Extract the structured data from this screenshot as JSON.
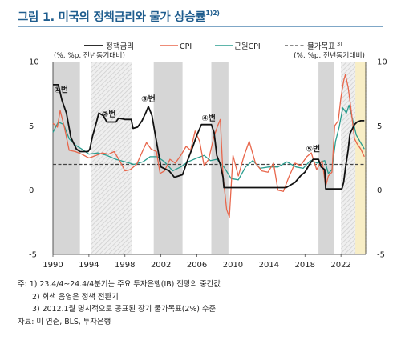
{
  "title": "그림 1. 미국의 정책금리와 물가 상승률",
  "title_sup": "1)2)",
  "chart_data": {
    "type": "line",
    "left_axis_label": "(%, %p, 전년동기대비)",
    "right_axis_label": "(%, %p, 전년동기대비)",
    "ylim": [
      -5,
      10
    ],
    "yticks_left": [
      "10",
      "5",
      "0",
      "-5"
    ],
    "yticks_right": [
      "10",
      "5",
      "0",
      "-5"
    ],
    "xlim": [
      1990,
      2024.75
    ],
    "xticks": [
      "1990",
      "1994",
      "1998",
      "2002",
      "2006",
      "2010",
      "2014",
      "2018",
      "2022"
    ],
    "legend": {
      "policy": "정책금리",
      "cpi": "CPI",
      "core": "근원CPI",
      "target": "물가목표",
      "target_sup": "3)"
    },
    "colors": {
      "policy": "#111111",
      "cpi": "#e8664b",
      "core": "#2a9d8f",
      "target": "#444444",
      "shade": "#d6d6d6",
      "forecast": "#f8eec6"
    },
    "recessions": [
      [
        1990.0,
        1993.0
      ],
      [
        2001.2,
        2004.4
      ],
      [
        2007.6,
        2009.5
      ],
      [
        2019.5,
        2021.2
      ]
    ],
    "hatched": [
      [
        1994.2,
        1998.8
      ],
      [
        2022.0,
        2023.6
      ]
    ],
    "forecast_period": [
      2023.25,
      2024.75
    ],
    "markers": [
      {
        "label": "①번",
        "x": 1990.9,
        "y": 7.6
      },
      {
        "label": "②번",
        "x": 1996.2,
        "y": 5.7
      },
      {
        "label": "③번",
        "x": 2000.6,
        "y": 6.9
      },
      {
        "label": "④번",
        "x": 2007.3,
        "y": 5.4
      },
      {
        "label": "⑤번",
        "x": 2018.9,
        "y": 3.0
      }
    ],
    "target_value": 2.0,
    "series": [
      {
        "key": "policy",
        "name": "정책금리",
        "x": [
          1990.0,
          1990.6,
          1991.0,
          1991.5,
          1992.0,
          1992.6,
          1993.0,
          1993.9,
          1994.1,
          1994.4,
          1994.8,
          1995.1,
          1995.6,
          1996.0,
          1996.5,
          1997.0,
          1997.3,
          1998.0,
          1998.7,
          1998.9,
          1999.4,
          1999.9,
          2000.3,
          2000.6,
          2001.0,
          2001.3,
          2001.7,
          2002.0,
          2002.9,
          2003.5,
          2004.4,
          2004.9,
          2005.5,
          2006.0,
          2006.5,
          2007.6,
          2007.9,
          2008.2,
          2008.6,
          2008.9,
          2009.0,
          2015.9,
          2016.9,
          2017.5,
          2018.0,
          2018.5,
          2018.9,
          2019.5,
          2019.8,
          2020.2,
          2020.3,
          2022.1,
          2022.3,
          2022.5,
          2022.8,
          2023.0,
          2023.5,
          2023.8,
          2024.2,
          2024.6
        ],
        "y": [
          8.2,
          8.2,
          7.0,
          6.0,
          4.1,
          3.2,
          3.0,
          3.0,
          3.2,
          4.2,
          5.2,
          6.0,
          5.8,
          5.3,
          5.3,
          5.3,
          5.6,
          5.5,
          5.5,
          4.8,
          4.9,
          5.4,
          6.0,
          6.5,
          5.8,
          4.6,
          3.0,
          1.8,
          1.5,
          1.0,
          1.2,
          2.2,
          3.3,
          4.3,
          5.1,
          5.1,
          4.5,
          2.7,
          2.0,
          1.0,
          0.2,
          0.2,
          0.6,
          1.1,
          1.4,
          2.0,
          2.4,
          2.4,
          1.8,
          1.6,
          0.1,
          0.1,
          0.6,
          1.7,
          3.1,
          4.4,
          5.1,
          5.3,
          5.4,
          5.4
        ]
      },
      {
        "key": "cpi",
        "name": "CPI",
        "x": [
          1990.0,
          1990.5,
          1990.8,
          1991.3,
          1991.8,
          1992.5,
          1993.2,
          1994.0,
          1994.8,
          1995.5,
          1996.2,
          1996.8,
          1997.4,
          1998.0,
          1998.6,
          1999.3,
          2000.0,
          2000.4,
          2000.9,
          2001.5,
          2001.9,
          2002.4,
          2003.0,
          2003.6,
          2004.2,
          2004.8,
          2005.3,
          2005.8,
          2006.3,
          2006.8,
          2007.3,
          2007.9,
          2008.3,
          2008.6,
          2008.9,
          2009.3,
          2009.6,
          2010.0,
          2010.6,
          2011.2,
          2011.8,
          2012.5,
          2013.2,
          2013.9,
          2014.5,
          2015.0,
          2015.6,
          2016.2,
          2016.9,
          2017.5,
          2018.2,
          2018.7,
          2019.3,
          2019.9,
          2020.3,
          2020.6,
          2021.0,
          2021.3,
          2021.7,
          2022.0,
          2022.3,
          2022.5,
          2022.8,
          2023.1,
          2023.5,
          2023.8,
          2024.2,
          2024.6
        ],
        "y": [
          5.2,
          4.9,
          6.2,
          4.8,
          3.1,
          3.0,
          2.8,
          2.5,
          2.7,
          2.9,
          2.8,
          3.0,
          2.3,
          1.5,
          1.6,
          2.0,
          3.1,
          3.7,
          3.2,
          3.0,
          1.3,
          1.5,
          2.4,
          2.1,
          2.7,
          3.4,
          3.1,
          4.6,
          3.8,
          1.9,
          2.4,
          4.2,
          5.0,
          5.5,
          1.1,
          -1.5,
          -2.1,
          2.7,
          1.1,
          2.6,
          3.8,
          2.1,
          1.5,
          1.4,
          2.1,
          0.0,
          -0.1,
          1.0,
          2.1,
          1.9,
          2.6,
          2.9,
          1.6,
          2.3,
          0.3,
          1.1,
          1.4,
          5.0,
          5.4,
          7.2,
          8.5,
          9.0,
          8.0,
          6.4,
          4.0,
          3.6,
          3.2,
          2.6
        ]
      },
      {
        "key": "core",
        "name": "근원CPI",
        "x": [
          1990.0,
          1990.6,
          1991.2,
          1991.8,
          1992.5,
          1993.2,
          1994.0,
          1995.0,
          1996.0,
          1997.0,
          1998.0,
          1999.0,
          2000.0,
          2000.8,
          2001.6,
          2002.4,
          2003.3,
          2004.2,
          2005.0,
          2006.0,
          2006.8,
          2007.5,
          2008.2,
          2009.0,
          2009.8,
          2010.6,
          2011.4,
          2012.2,
          2013.0,
          2014.0,
          2015.0,
          2016.0,
          2017.0,
          2017.8,
          2018.6,
          2019.4,
          2020.2,
          2020.6,
          2021.0,
          2021.4,
          2021.8,
          2022.2,
          2022.6,
          2022.9,
          2023.3,
          2023.7,
          2024.1,
          2024.6
        ],
        "y": [
          4.5,
          5.3,
          5.1,
          4.0,
          3.5,
          3.2,
          2.8,
          2.9,
          2.7,
          2.4,
          2.2,
          2.0,
          2.2,
          2.6,
          2.6,
          2.2,
          1.5,
          1.8,
          2.2,
          2.5,
          2.7,
          2.3,
          2.4,
          1.8,
          0.9,
          0.8,
          1.8,
          2.3,
          1.7,
          1.8,
          1.8,
          2.2,
          1.8,
          1.7,
          2.3,
          2.1,
          2.3,
          1.3,
          1.6,
          3.8,
          4.9,
          6.4,
          6.0,
          6.6,
          5.5,
          4.3,
          3.8,
          3.2
        ]
      }
    ]
  },
  "notes": [
    "주: 1) 23.4/4~24.4/4분기는 주요 투자은행(IB) 전망의 중간값",
    "2) 회색 음영은 정책 전환기",
    "3) 2012.1월 명시적으로 공표된 장기 물가목표(2%) 수준"
  ],
  "source": "자료: 미 연준, BLS, 투자은행"
}
